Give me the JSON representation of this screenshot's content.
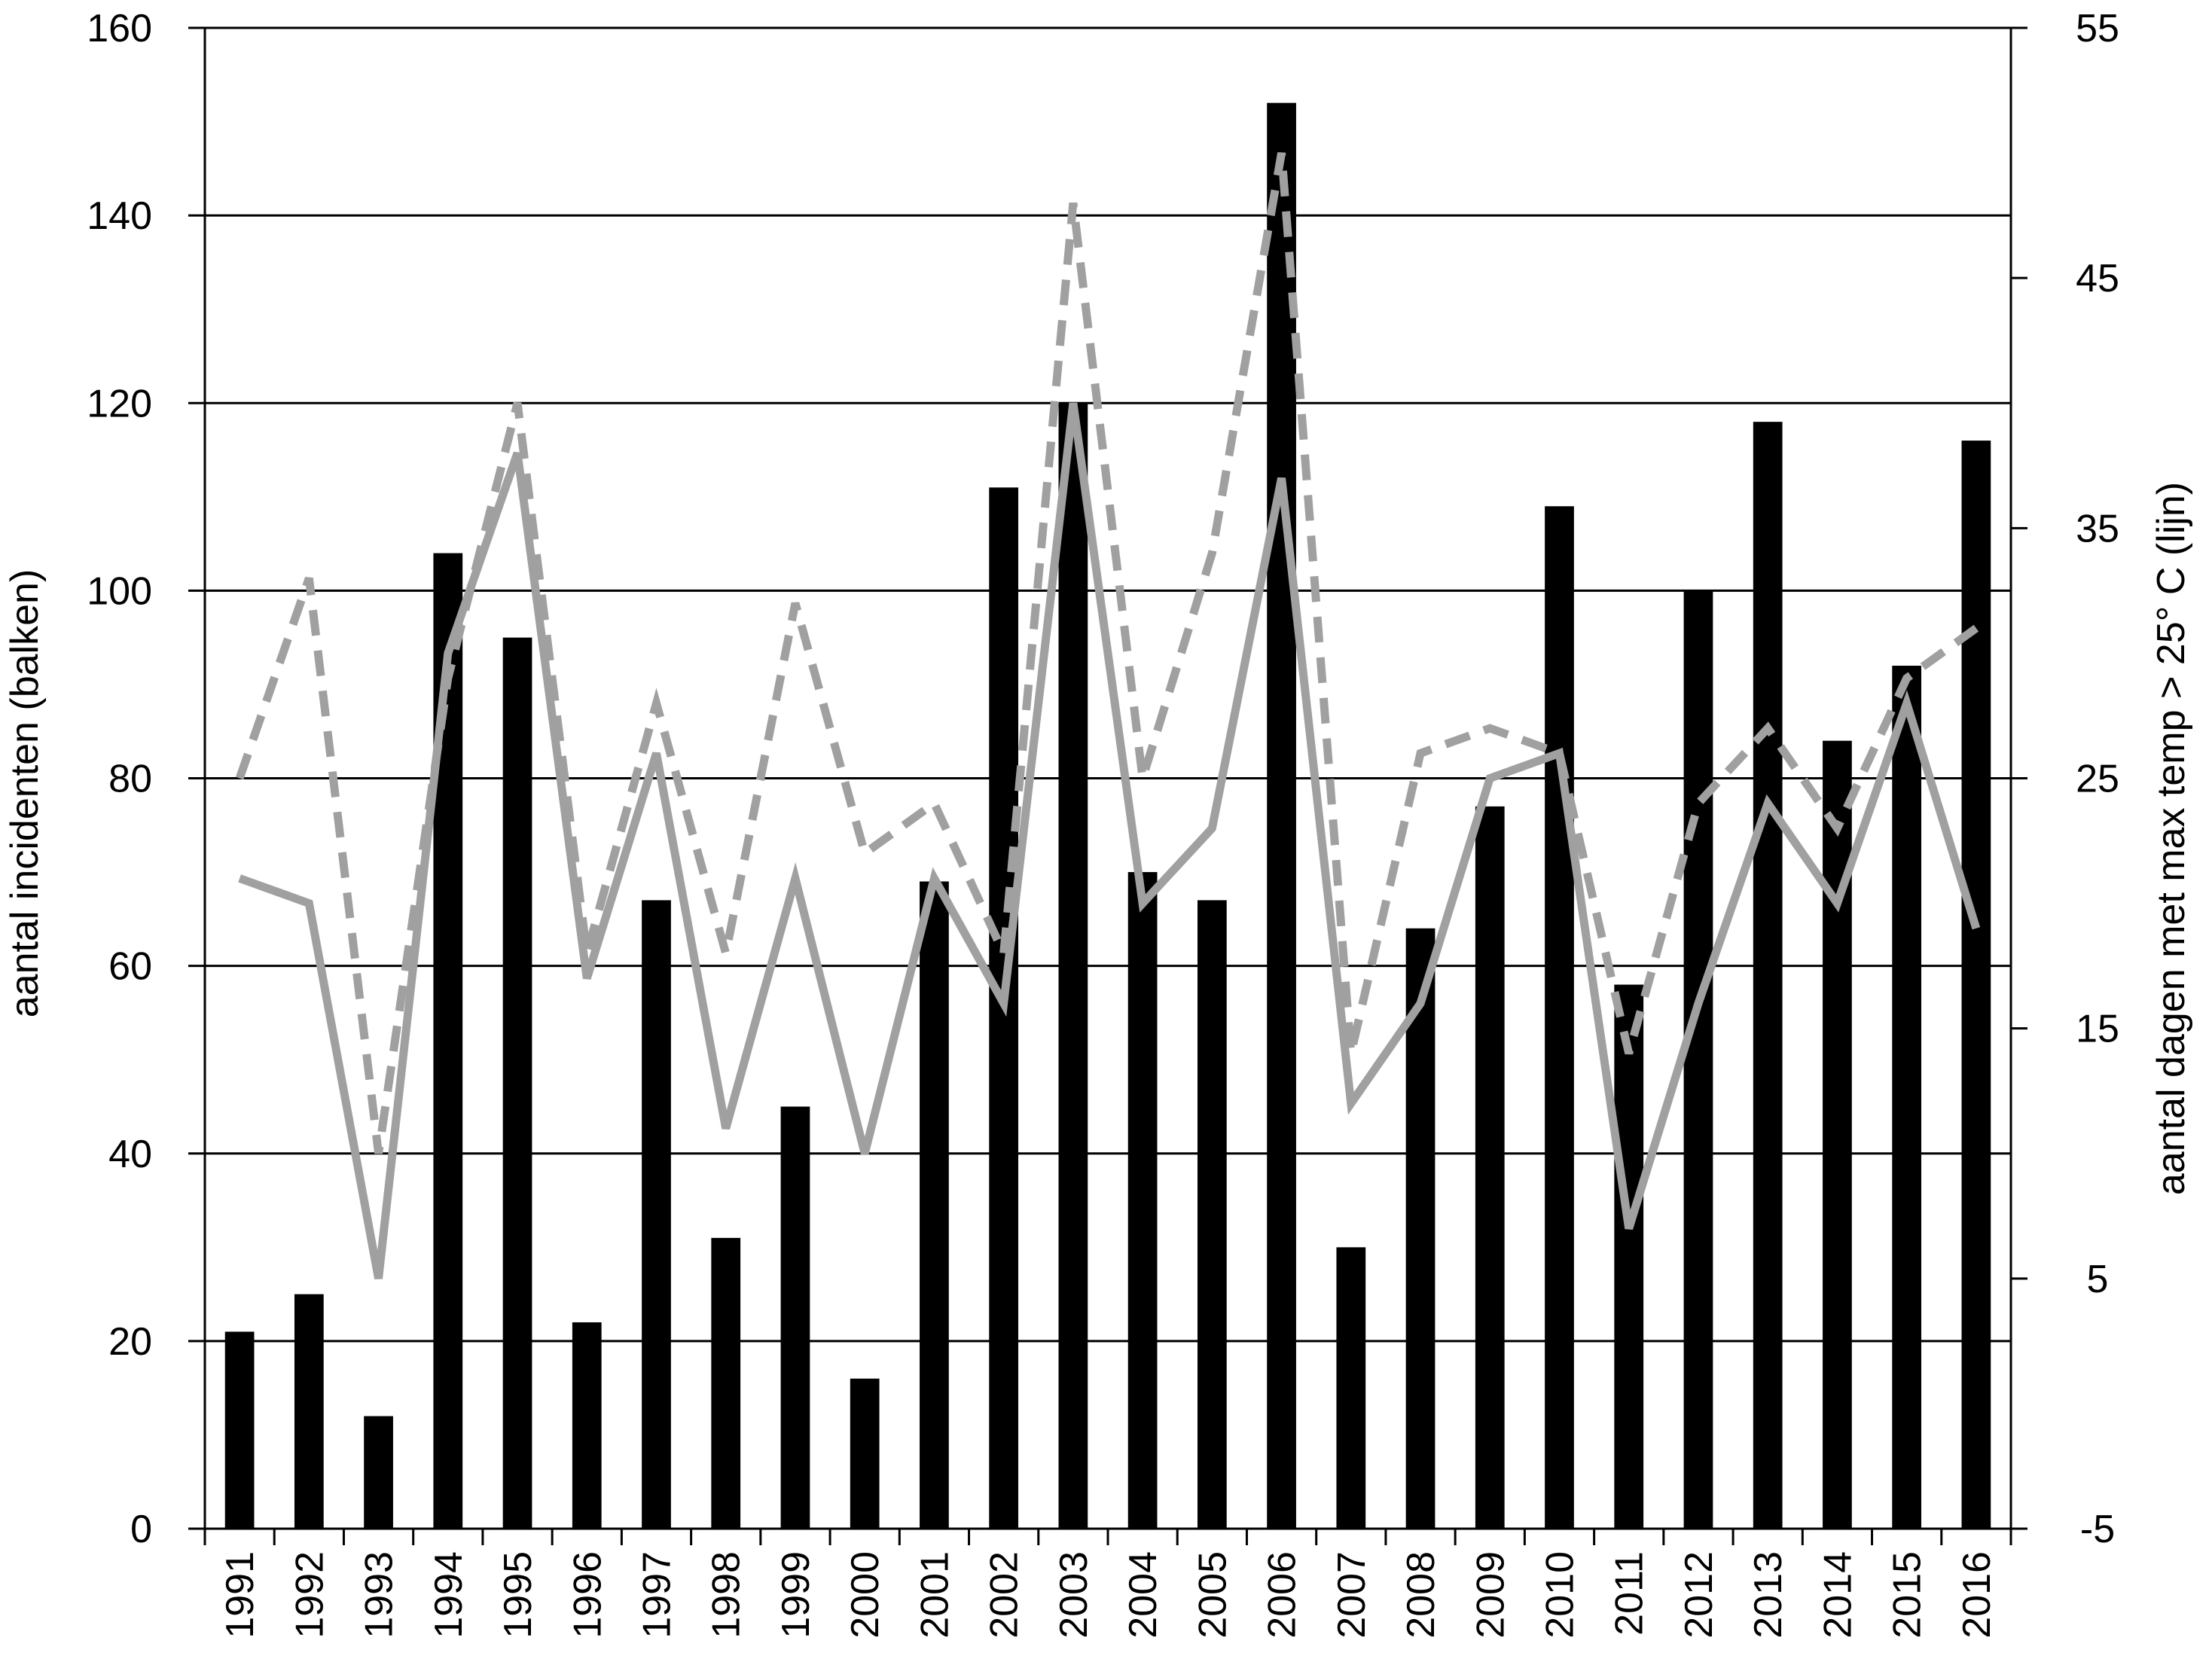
{
  "chart_data": {
    "type": "bar",
    "title": "",
    "xlabel": "",
    "ylabel": "aantal incidenten (balken)",
    "y2label": "aantal dagen met max temp > 25° C (lijn)",
    "ylim": [
      0,
      160
    ],
    "y2lim": [
      -5,
      55
    ],
    "yticks": [
      0,
      20,
      40,
      60,
      80,
      100,
      120,
      140,
      160
    ],
    "y2ticks": [
      -5,
      5,
      15,
      25,
      35,
      45,
      55
    ],
    "grid": true,
    "legend": "none",
    "categories": [
      "1991",
      "1992",
      "1993",
      "1994",
      "1995",
      "1996",
      "1997",
      "1998",
      "1999",
      "2000",
      "2001",
      "2002",
      "2003",
      "2004",
      "2005",
      "2006",
      "2007",
      "2008",
      "2009",
      "2010",
      "2011",
      "2012",
      "2013",
      "2014",
      "2015",
      "2016"
    ],
    "series": [
      {
        "type": "bar",
        "axis": "left",
        "color": "#000000",
        "values": [
          21,
          25,
          12,
          104,
          95,
          22,
          67,
          31,
          45,
          16,
          69,
          111,
          120,
          70,
          67,
          152,
          30,
          64,
          77,
          109,
          58,
          100,
          118,
          84,
          92,
          116
        ]
      },
      {
        "type": "line",
        "axis": "right",
        "style": "solid",
        "color": "#a0a0a0",
        "values": [
          21,
          20,
          5,
          30,
          38,
          17,
          26,
          11,
          21,
          10,
          21,
          16,
          40,
          20,
          23,
          37,
          12,
          16,
          25,
          26,
          7,
          16,
          24,
          20,
          28,
          19
        ]
      },
      {
        "type": "line",
        "axis": "right",
        "style": "dashed",
        "color": "#a0a0a0",
        "values": [
          25,
          33,
          10,
          29,
          40,
          18,
          28,
          18,
          32,
          22,
          24,
          18,
          48,
          25,
          34,
          50,
          14,
          26,
          27,
          26,
          14,
          24,
          27,
          23,
          29,
          31
        ]
      }
    ]
  }
}
